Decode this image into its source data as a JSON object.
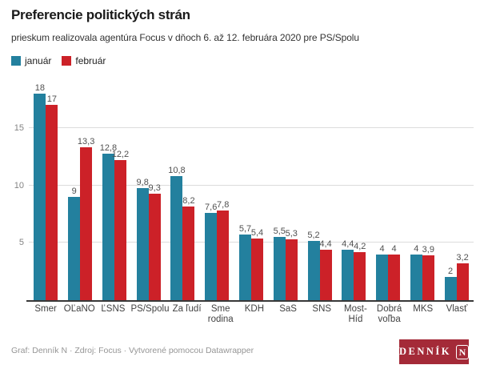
{
  "header": {
    "title": "Preferencie politických strán",
    "subtitle": "prieskum realizovala agentúra Focus v dňoch 6. až 12. februára 2020 pre PS/Spolu"
  },
  "chart_data": {
    "type": "bar",
    "title": "Preferencie politických strán",
    "subtitle": "prieskum realizovala agentúra Focus v dňoch 6. až 12. februára 2020 pre PS/Spolu",
    "categories": [
      "Smer",
      "OĽaNO",
      "ĽSNS",
      "PS/Spolu",
      "Za ľudí",
      "Sme rodina",
      "KDH",
      "SaS",
      "SNS",
      "Most-Híd",
      "Dobrá voľba",
      "MKS",
      "Vlasť"
    ],
    "series": [
      {
        "name": "január",
        "color": "#23809e",
        "values": [
          18,
          9,
          12.8,
          9.8,
          10.8,
          7.6,
          5.7,
          5.5,
          5.2,
          4.4,
          4,
          4,
          2
        ]
      },
      {
        "name": "február",
        "color": "#cc2128",
        "values": [
          17,
          13.3,
          12.2,
          9.3,
          8.2,
          7.8,
          5.4,
          5.3,
          4.4,
          4.2,
          4,
          3.9,
          3.2
        ]
      }
    ],
    "xlabel": "",
    "ylabel": "",
    "y_ticks": [
      5,
      10,
      15
    ],
    "ylim": [
      0,
      19.4
    ],
    "grid": true,
    "legend_position": "top-left",
    "value_labels": true,
    "decimal_separator": ","
  },
  "footer": {
    "credit": "Graf: Denník N · Zdroj: Focus · Vytvorené pomocou Datawrapper",
    "logo": {
      "text": "DENNÍK",
      "mark": "N"
    }
  },
  "colors": {
    "januar": "#23809e",
    "februar": "#cc2128",
    "logo_background": "#a42a38",
    "gridline": "#dcdcdc",
    "baseline": "#383838"
  }
}
